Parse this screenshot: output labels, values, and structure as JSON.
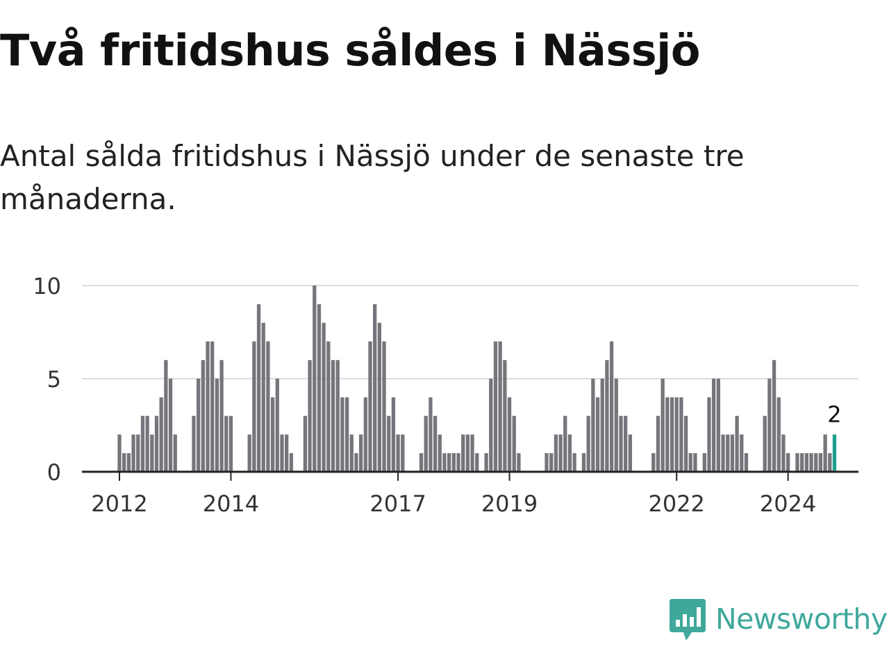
{
  "title": "Två fritidshus såldes i Nässjö",
  "subtitle": "Antal sålda fritidshus i Nässjö under de senaste tre månaderna.",
  "brand": {
    "name": "Newsworthy",
    "icon": "bar-chart-speech-bubble-icon",
    "color": "#3fa89b"
  },
  "chart_data": {
    "type": "bar",
    "title": "",
    "xlabel": "",
    "ylabel": "",
    "ylim": [
      0,
      10
    ],
    "yticks": [
      0,
      5,
      10
    ],
    "grid": true,
    "bar_color": "#76757b",
    "highlight_color": "#1f9e8f",
    "xtick_labels": [
      "2012",
      "2014",
      "2017",
      "2019",
      "2022",
      "2024"
    ],
    "xtick_months": [
      0,
      24,
      60,
      84,
      120,
      144
    ],
    "month_start": "2012-01",
    "values": [
      2,
      1,
      1,
      2,
      2,
      3,
      3,
      2,
      3,
      4,
      6,
      5,
      2,
      0,
      0,
      0,
      3,
      5,
      6,
      7,
      7,
      5,
      6,
      3,
      3,
      0,
      0,
      0,
      2,
      7,
      9,
      8,
      7,
      4,
      5,
      2,
      2,
      1,
      0,
      0,
      3,
      6,
      10,
      9,
      8,
      7,
      6,
      6,
      4,
      4,
      2,
      1,
      2,
      4,
      7,
      9,
      8,
      7,
      3,
      4,
      2,
      2,
      0,
      0,
      0,
      1,
      3,
      4,
      3,
      2,
      1,
      1,
      1,
      1,
      2,
      2,
      2,
      1,
      0,
      1,
      5,
      7,
      7,
      6,
      4,
      3,
      1,
      0,
      0,
      0,
      0,
      0,
      1,
      1,
      2,
      2,
      3,
      2,
      1,
      0,
      1,
      3,
      5,
      4,
      5,
      6,
      7,
      5,
      3,
      3,
      2,
      0,
      0,
      0,
      0,
      1,
      3,
      5,
      4,
      4,
      4,
      4,
      3,
      1,
      1,
      0,
      1,
      4,
      5,
      5,
      2,
      2,
      2,
      3,
      2,
      1,
      0,
      0,
      0,
      3,
      5,
      6,
      4,
      2,
      1,
      0,
      1,
      1,
      1,
      1,
      1,
      1,
      2,
      1,
      2
    ],
    "highlight_label": "2"
  }
}
